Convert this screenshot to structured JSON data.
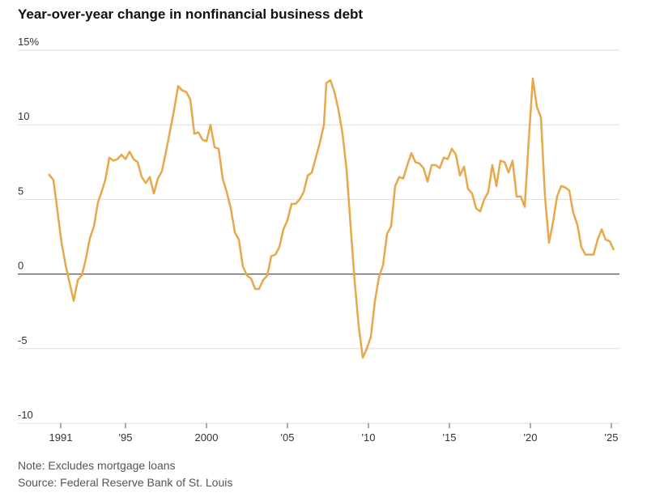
{
  "chart_data": {
    "type": "line",
    "title": "Year-over-year change in nonfinancial business debt",
    "notes": [
      "Note: Excludes mortgage loans",
      "Source: Federal Reserve Bank of St. Louis"
    ],
    "x": [
      1990.25,
      1990.55,
      1990.8,
      1991.05,
      1991.3,
      1991.55,
      1991.8,
      1992.05,
      1992.3,
      1992.55,
      1992.8,
      1993.05,
      1993.3,
      1993.55,
      1993.75,
      1994.0,
      1994.25,
      1994.5,
      1994.75,
      1995.0,
      1995.25,
      1995.5,
      1995.75,
      1996.0,
      1996.25,
      1996.5,
      1996.75,
      1997.0,
      1997.25,
      1997.5,
      1997.75,
      1998.0,
      1998.25,
      1998.5,
      1998.75,
      1999.0,
      1999.25,
      1999.5,
      1999.75,
      2000.0,
      2000.25,
      2000.5,
      2000.75,
      2001.0,
      2001.25,
      2001.5,
      2001.75,
      2002.0,
      2002.25,
      2002.5,
      2002.75,
      2003.0,
      2003.25,
      2003.5,
      2003.75,
      2004.0,
      2004.25,
      2004.5,
      2004.75,
      2005.0,
      2005.25,
      2005.5,
      2005.75,
      2006.0,
      2006.25,
      2006.5,
      2006.75,
      2007.0,
      2007.25,
      2007.4,
      2007.65,
      2007.9,
      2008.15,
      2008.4,
      2008.65,
      2008.9,
      2009.15,
      2009.4,
      2009.65,
      2009.9,
      2010.15,
      2010.4,
      2010.65,
      2010.9,
      2011.15,
      2011.4,
      2011.65,
      2011.9,
      2012.15,
      2012.4,
      2012.65,
      2012.9,
      2013.15,
      2013.4,
      2013.65,
      2013.9,
      2014.15,
      2014.4,
      2014.65,
      2014.9,
      2015.15,
      2015.4,
      2015.65,
      2015.9,
      2016.15,
      2016.4,
      2016.65,
      2016.9,
      2017.15,
      2017.4,
      2017.65,
      2017.9,
      2018.15,
      2018.4,
      2018.65,
      2018.9,
      2019.15,
      2019.4,
      2019.65,
      2019.9,
      2020.15,
      2020.4,
      2020.65,
      2020.9,
      2021.15,
      2021.4,
      2021.65,
      2021.9,
      2022.15,
      2022.4,
      2022.65,
      2022.9,
      2023.15,
      2023.4,
      2023.65,
      2023.9,
      2024.15,
      2024.4,
      2024.65,
      2024.9,
      2025.15
    ],
    "values": [
      6.7,
      6.3,
      4.2,
      2.1,
      0.6,
      -0.6,
      -1.8,
      -0.4,
      -0.1,
      1.0,
      2.4,
      3.2,
      4.8,
      5.6,
      6.3,
      7.8,
      7.6,
      7.7,
      8.0,
      7.7,
      8.2,
      7.7,
      7.5,
      6.5,
      6.1,
      6.5,
      5.4,
      6.4,
      6.9,
      8.2,
      9.6,
      11.0,
      12.6,
      12.3,
      12.2,
      11.7,
      9.4,
      9.5,
      9.0,
      8.9,
      10.0,
      8.5,
      8.4,
      6.4,
      5.5,
      4.4,
      2.8,
      2.3,
      0.5,
      -0.1,
      -0.3,
      -1.0,
      -1.0,
      -0.4,
      -0.1,
      1.2,
      1.3,
      1.8,
      3.0,
      3.6,
      4.7,
      4.7,
      5.0,
      5.5,
      6.6,
      6.8,
      7.8,
      8.8,
      10.0,
      12.8,
      13.0,
      12.2,
      11.0,
      9.4,
      7.0,
      3.2,
      -0.5,
      -3.5,
      -5.6,
      -5.0,
      -4.2,
      -1.8,
      -0.2,
      0.6,
      2.7,
      3.2,
      5.9,
      6.5,
      6.4,
      7.3,
      8.1,
      7.5,
      7.4,
      7.1,
      6.2,
      7.3,
      7.3,
      7.1,
      7.8,
      7.7,
      8.4,
      8.0,
      6.6,
      7.2,
      5.7,
      5.4,
      4.4,
      4.2,
      5.0,
      5.5,
      7.3,
      5.9,
      7.6,
      7.5,
      6.8,
      7.6,
      5.2,
      5.2,
      4.5,
      9.0,
      13.1,
      11.2,
      10.5,
      5.2,
      2.1,
      3.5,
      5.2,
      5.9,
      5.8,
      5.6,
      4.1,
      3.3,
      1.8,
      1.3,
      1.3,
      1.3,
      2.3,
      3.0,
      2.3,
      2.2,
      1.6
    ],
    "color": "#e8a74a",
    "xlim": [
      1988.35,
      2025.5
    ],
    "xticks": [
      1991,
      {
        "value": 1995,
        "label": "'95"
      },
      2000,
      {
        "value": 2005,
        "label": "'05"
      },
      {
        "value": 2010,
        "label": "'10"
      },
      {
        "value": 2015,
        "label": "'15"
      },
      {
        "value": 2020,
        "label": "'20"
      },
      {
        "value": 2025,
        "label": "'25"
      }
    ],
    "ylim": [
      -10,
      15
    ],
    "yticks": [
      {
        "value": 15,
        "label": "15%"
      },
      10,
      5,
      0,
      -5,
      -10
    ],
    "grid": true
  }
}
